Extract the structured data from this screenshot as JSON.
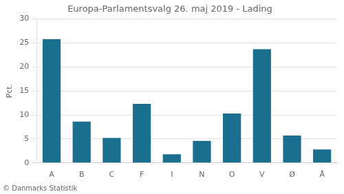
{
  "chart_data": {
    "type": "bar",
    "title": "Europa-Parlamentsvalg 26. maj 2019 - Lading",
    "categories": [
      "A",
      "B",
      "C",
      "F",
      "I",
      "N",
      "O",
      "V",
      "Ø",
      "Å"
    ],
    "values": [
      25.8,
      8.6,
      5.2,
      12.3,
      1.8,
      4.6,
      10.3,
      23.7,
      5.7,
      2.8
    ],
    "color": "#1a6e8e",
    "ylabel": "Pct.",
    "ylim": [
      0,
      30
    ],
    "yticks": [
      0,
      5,
      10,
      15,
      20,
      25,
      30
    ],
    "grid": true,
    "annotations": [
      "© Danmarks Statistik"
    ]
  }
}
